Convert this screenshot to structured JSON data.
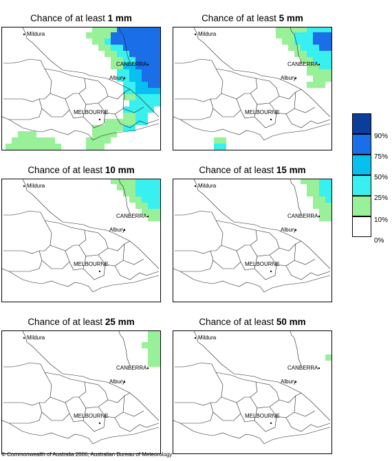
{
  "panels": [
    {
      "title_prefix": "Chance of at least ",
      "title_amount": "1 mm"
    },
    {
      "title_prefix": "Chance of at least ",
      "title_amount": "5 mm"
    },
    {
      "title_prefix": "Chance of at least ",
      "title_amount": "10 mm"
    },
    {
      "title_prefix": "Chance of at least ",
      "title_amount": "15 mm"
    },
    {
      "title_prefix": "Chance of at least ",
      "title_amount": "25 mm"
    },
    {
      "title_prefix": "Chance of at least ",
      "title_amount": "50 mm"
    }
  ],
  "places": {
    "mildura": "Mildura",
    "canberra": "CANBERRA",
    "albury": "Albury",
    "melbourne": "MELBOURNE"
  },
  "legend": {
    "labels": [
      "90%",
      "75%",
      "50%",
      "25%",
      "10%",
      "0%"
    ],
    "colors": [
      "#0a3d9c",
      "#1a6fe8",
      "#08c0f0",
      "#38f0f0",
      "#98f098",
      "#ffffff"
    ]
  },
  "copyright": "© Commonwealth of Australia 2006, Australian Bureau of Meteorology"
}
